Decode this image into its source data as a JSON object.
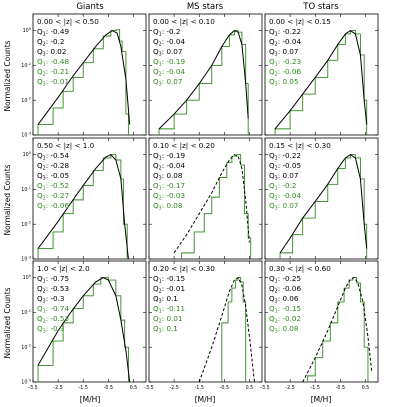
{
  "chart_data": {
    "type": "line",
    "column_titles": [
      "Giants",
      "MS stars",
      "TO stars"
    ],
    "ylabel": "Normalized Counts",
    "xlabel": "[M/H]",
    "xlim": [
      -3.5,
      1.0
    ],
    "ylim": [
      0.001,
      3
    ],
    "yscale": "log",
    "xticks": [
      "-3.5",
      "-2.5",
      "-1.5",
      "-0.5",
      "0.5"
    ],
    "yticks": [
      {
        "base": "10",
        "exp": "0"
      },
      {
        "base": "10",
        "exp": "-1"
      },
      {
        "base": "10",
        "exp": "-2"
      },
      {
        "base": "10",
        "exp": "-3"
      }
    ],
    "colors": {
      "series_a": "#000000",
      "series_b": "#2e8b1e"
    },
    "q_labels": [
      "Q",
      "Q",
      "Q"
    ],
    "q_subs": [
      "1",
      "2",
      "3"
    ],
    "panels": [
      {
        "row": 0,
        "col": 0,
        "zlabel": "0.00 < |z| < 0.50",
        "q_black": [
          "-0.49",
          "-0.2",
          "0.02"
        ],
        "q_green": [
          "-0.48",
          "-0.21",
          "-0.01"
        ],
        "curve_style": "solid",
        "curve_points": [
          [
            -3.3,
            0.002
          ],
          [
            -2.5,
            0.012
          ],
          [
            -2.0,
            0.04
          ],
          [
            -1.5,
            0.12
          ],
          [
            -1.0,
            0.35
          ],
          [
            -0.6,
            0.75
          ],
          [
            -0.35,
            1.0
          ],
          [
            -0.15,
            0.85
          ],
          [
            0.0,
            0.35
          ],
          [
            0.2,
            0.04
          ],
          [
            0.35,
            0.002
          ]
        ],
        "hist_points": [
          [
            -3.3,
            0.002
          ],
          [
            -2.7,
            0.006
          ],
          [
            -2.3,
            0.018
          ],
          [
            -1.9,
            0.045
          ],
          [
            -1.5,
            0.12
          ],
          [
            -1.1,
            0.3
          ],
          [
            -0.7,
            0.7
          ],
          [
            -0.4,
            1.0
          ],
          [
            -0.2,
            1.05
          ],
          [
            -0.05,
            0.5
          ],
          [
            0.05,
            0.25
          ],
          [
            0.15,
            0.25
          ],
          [
            0.2,
            0.004
          ],
          [
            0.3,
            0.004
          ]
        ]
      },
      {
        "row": 0,
        "col": 1,
        "zlabel": "0.00 < |z| < 0.10",
        "q_black": [
          "-0.2",
          "-0.04",
          "0.07"
        ],
        "q_green": [
          "-0.19",
          "-0.04",
          "0.07"
        ],
        "curve_style": "solid",
        "curve_points": [
          [
            -3.1,
            0.0015
          ],
          [
            -2.5,
            0.004
          ],
          [
            -2.0,
            0.01
          ],
          [
            -1.5,
            0.03
          ],
          [
            -1.0,
            0.1
          ],
          [
            -0.6,
            0.35
          ],
          [
            -0.3,
            0.75
          ],
          [
            -0.1,
            1.0
          ],
          [
            0.05,
            0.9
          ],
          [
            0.2,
            0.4
          ],
          [
            0.35,
            0.03
          ],
          [
            0.45,
            0.003
          ]
        ],
        "hist_points": [
          [
            -3.1,
            0.0015
          ],
          [
            -2.5,
            0.004
          ],
          [
            -2.0,
            0.01
          ],
          [
            -1.5,
            0.03
          ],
          [
            -1.0,
            0.1
          ],
          [
            -0.6,
            0.35
          ],
          [
            -0.3,
            0.75
          ],
          [
            -0.1,
            1.0
          ],
          [
            0.05,
            0.9
          ],
          [
            0.2,
            0.4
          ],
          [
            0.35,
            0.03
          ],
          [
            0.45,
            0.003
          ]
        ]
      },
      {
        "row": 0,
        "col": 2,
        "zlabel": "0.00 < |z| < 0.15",
        "q_black": [
          "-0.22",
          "-0.04",
          "0.07"
        ],
        "q_green": [
          "-0.23",
          "-0.06",
          "0.05"
        ],
        "curve_style": "solid",
        "curve_points": [
          [
            -3.1,
            0.0015
          ],
          [
            -2.5,
            0.005
          ],
          [
            -2.0,
            0.015
          ],
          [
            -1.5,
            0.045
          ],
          [
            -1.0,
            0.14
          ],
          [
            -0.6,
            0.4
          ],
          [
            -0.3,
            0.8
          ],
          [
            -0.1,
            1.0
          ],
          [
            0.1,
            0.8
          ],
          [
            0.3,
            0.2
          ],
          [
            0.45,
            0.01
          ],
          [
            0.55,
            0.002
          ]
        ],
        "hist_points": [
          [
            -3.1,
            0.0015
          ],
          [
            -2.5,
            0.005
          ],
          [
            -2.0,
            0.015
          ],
          [
            -1.5,
            0.045
          ],
          [
            -1.0,
            0.14
          ],
          [
            -0.6,
            0.4
          ],
          [
            -0.3,
            0.8
          ],
          [
            -0.1,
            1.0
          ],
          [
            0.1,
            0.8
          ],
          [
            0.3,
            0.2
          ],
          [
            0.45,
            0.01
          ],
          [
            0.55,
            0.002
          ]
        ]
      },
      {
        "row": 1,
        "col": 0,
        "zlabel": "0.50 < |z| < 1.0",
        "q_black": [
          "-0.54",
          "-0.28",
          "-0.05"
        ],
        "q_green": [
          "-0.52",
          "-0.27",
          "-0.06"
        ],
        "curve_style": "solid",
        "curve_points": [
          [
            -3.3,
            0.002
          ],
          [
            -2.5,
            0.012
          ],
          [
            -2.0,
            0.04
          ],
          [
            -1.5,
            0.13
          ],
          [
            -1.0,
            0.4
          ],
          [
            -0.6,
            0.85
          ],
          [
            -0.4,
            1.0
          ],
          [
            -0.2,
            0.7
          ],
          [
            0.0,
            0.2
          ],
          [
            0.15,
            0.01
          ],
          [
            0.3,
            0.001
          ]
        ],
        "hist_points": [
          [
            -3.3,
            0.002
          ],
          [
            -2.7,
            0.006
          ],
          [
            -2.3,
            0.02
          ],
          [
            -1.9,
            0.05
          ],
          [
            -1.5,
            0.13
          ],
          [
            -1.1,
            0.35
          ],
          [
            -0.7,
            0.8
          ],
          [
            -0.4,
            1.0
          ],
          [
            -0.2,
            0.7
          ],
          [
            0.0,
            0.2
          ],
          [
            0.1,
            0.01
          ],
          [
            0.25,
            0.002
          ]
        ]
      },
      {
        "row": 1,
        "col": 1,
        "zlabel": "0.10 < |z| < 0.20",
        "q_black": [
          "-0.19",
          "-0.04",
          "0.08"
        ],
        "q_green": [
          "-0.17",
          "-0.03",
          "0.08"
        ],
        "curve_style": "dashed",
        "curve_points": [
          [
            -2.5,
            0.0015
          ],
          [
            -2.0,
            0.005
          ],
          [
            -1.5,
            0.02
          ],
          [
            -1.0,
            0.08
          ],
          [
            -0.6,
            0.3
          ],
          [
            -0.3,
            0.7
          ],
          [
            -0.1,
            1.0
          ],
          [
            0.05,
            0.9
          ],
          [
            0.2,
            0.4
          ],
          [
            0.35,
            0.05
          ],
          [
            0.5,
            0.003
          ]
        ],
        "hist_points": [
          [
            -2.2,
            0.0015
          ],
          [
            -1.7,
            0.006
          ],
          [
            -1.3,
            0.02
          ],
          [
            -1.0,
            0.06
          ],
          [
            -0.7,
            0.22
          ],
          [
            -0.4,
            0.6
          ],
          [
            -0.2,
            0.9
          ],
          [
            0.0,
            1.0
          ],
          [
            0.15,
            0.5
          ],
          [
            0.3,
            0.02
          ],
          [
            0.45,
            0.004
          ],
          [
            0.55,
            0.004
          ]
        ]
      },
      {
        "row": 1,
        "col": 2,
        "zlabel": "0.15 < |z| < 0.30",
        "q_black": [
          "-0.22",
          "-0.05",
          "0.07"
        ],
        "q_green": [
          "-0.2",
          "-0.04",
          "0.07"
        ],
        "curve_style": "solid",
        "curve_points": [
          [
            -2.9,
            0.0015
          ],
          [
            -2.5,
            0.004
          ],
          [
            -2.0,
            0.015
          ],
          [
            -1.5,
            0.045
          ],
          [
            -1.0,
            0.14
          ],
          [
            -0.6,
            0.4
          ],
          [
            -0.3,
            0.8
          ],
          [
            -0.1,
            1.0
          ],
          [
            0.1,
            0.8
          ],
          [
            0.3,
            0.2
          ],
          [
            0.45,
            0.01
          ],
          [
            0.55,
            0.002
          ]
        ],
        "hist_points": [
          [
            -2.9,
            0.0015
          ],
          [
            -2.4,
            0.005
          ],
          [
            -2.0,
            0.015
          ],
          [
            -1.5,
            0.045
          ],
          [
            -1.0,
            0.14
          ],
          [
            -0.6,
            0.4
          ],
          [
            -0.3,
            0.8
          ],
          [
            -0.1,
            1.0
          ],
          [
            0.1,
            0.8
          ],
          [
            0.3,
            0.2
          ],
          [
            0.45,
            0.01
          ],
          [
            0.55,
            0.002
          ]
        ]
      },
      {
        "row": 2,
        "col": 0,
        "zlabel": "1.0 < |z| < 2.0",
        "q_black": [
          "-0.75",
          "-0.53",
          "-0.3"
        ],
        "q_green": [
          "-0.74",
          "-0.53",
          "-0.3"
        ],
        "curve_style": "solid",
        "curve_points": [
          [
            -3.3,
            0.003
          ],
          [
            -2.5,
            0.03
          ],
          [
            -2.0,
            0.1
          ],
          [
            -1.5,
            0.3
          ],
          [
            -1.0,
            0.75
          ],
          [
            -0.7,
            1.0
          ],
          [
            -0.5,
            0.85
          ],
          [
            -0.2,
            0.3
          ],
          [
            0.0,
            0.06
          ],
          [
            0.2,
            0.008
          ],
          [
            0.35,
            0.001
          ]
        ],
        "hist_points": [
          [
            -3.3,
            0.003
          ],
          [
            -2.7,
            0.015
          ],
          [
            -2.3,
            0.05
          ],
          [
            -1.9,
            0.13
          ],
          [
            -1.5,
            0.3
          ],
          [
            -1.1,
            0.65
          ],
          [
            -0.8,
            1.0
          ],
          [
            -0.5,
            0.85
          ],
          [
            -0.2,
            0.3
          ],
          [
            0.0,
            0.06
          ],
          [
            0.15,
            0.01
          ],
          [
            0.3,
            0.002
          ]
        ]
      },
      {
        "row": 2,
        "col": 1,
        "zlabel": "0.20 < |z| < 0.30",
        "q_black": [
          "-0.15",
          "-0.01",
          "0.1"
        ],
        "q_green": [
          "-0.11",
          "0.01",
          "0.1"
        ],
        "curve_style": "dashed",
        "curve_points": [
          [
            -1.5,
            0.001
          ],
          [
            -1.0,
            0.01
          ],
          [
            -0.6,
            0.08
          ],
          [
            -0.3,
            0.4
          ],
          [
            -0.1,
            0.85
          ],
          [
            0.05,
            1.0
          ],
          [
            0.2,
            0.6
          ],
          [
            0.35,
            0.15
          ],
          [
            0.5,
            0.02
          ],
          [
            0.7,
            0.001
          ]
        ],
        "hist_points": [
          [
            -0.6,
            0.001
          ],
          [
            -0.6,
            0.05
          ],
          [
            -0.35,
            0.05
          ],
          [
            -0.35,
            0.2
          ],
          [
            -0.2,
            0.5
          ],
          [
            -0.05,
            0.85
          ],
          [
            0.05,
            1.0
          ],
          [
            0.15,
            0.75
          ],
          [
            0.25,
            0.2
          ],
          [
            0.35,
            0.001
          ]
        ]
      },
      {
        "row": 2,
        "col": 2,
        "zlabel": "0.30 < |z| < 0.60",
        "q_black": [
          "-0.25",
          "-0.06",
          "0.06"
        ],
        "q_green": [
          "-0.15",
          "-0.02",
          "0.08"
        ],
        "curve_style": "dashed",
        "curve_points": [
          [
            -2.0,
            0.001
          ],
          [
            -1.5,
            0.005
          ],
          [
            -1.0,
            0.03
          ],
          [
            -0.6,
            0.15
          ],
          [
            -0.3,
            0.5
          ],
          [
            -0.1,
            0.9
          ],
          [
            0.05,
            1.0
          ],
          [
            0.2,
            0.7
          ],
          [
            0.4,
            0.2
          ],
          [
            0.6,
            0.02
          ],
          [
            0.75,
            0.002
          ]
        ],
        "hist_points": [
          [
            -1.8,
            0.0015
          ],
          [
            -1.5,
            0.005
          ],
          [
            -1.2,
            0.015
          ],
          [
            -0.9,
            0.05
          ],
          [
            -0.6,
            0.2
          ],
          [
            -0.35,
            0.5
          ],
          [
            -0.15,
            0.85
          ],
          [
            0.0,
            1.0
          ],
          [
            0.15,
            0.7
          ],
          [
            0.3,
            0.2
          ],
          [
            0.45,
            0.01
          ],
          [
            0.6,
            0.002
          ]
        ]
      }
    ]
  }
}
